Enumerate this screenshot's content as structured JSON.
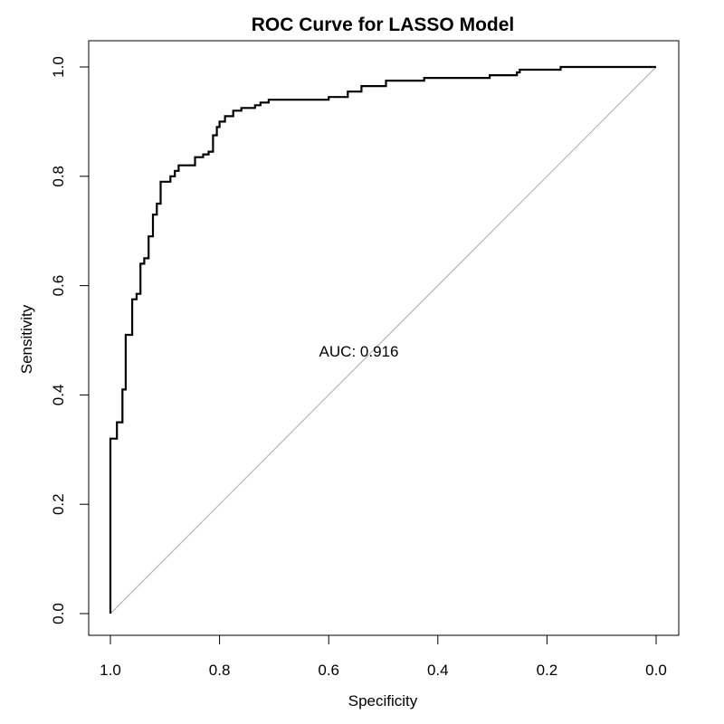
{
  "chart_data": {
    "type": "line",
    "title": "ROC Curve for LASSO Model",
    "xlabel": "Specificity",
    "ylabel": "Sensitivity",
    "xlim": [
      1.0,
      0.0
    ],
    "ylim": [
      0.0,
      1.0
    ],
    "x_reversed": true,
    "x_ticks": [
      "1.0",
      "0.8",
      "0.6",
      "0.4",
      "0.2",
      "0.0"
    ],
    "y_ticks": [
      "0.0",
      "0.2",
      "0.4",
      "0.6",
      "0.8",
      "1.0"
    ],
    "grid": false,
    "legend": "none",
    "annotation": {
      "text": "AUC: 0.916",
      "x": 0.5,
      "y": 0.48
    },
    "reference_line": {
      "from": [
        1.0,
        0.0
      ],
      "to": [
        0.0,
        1.0
      ],
      "color": "#aaaaaa"
    },
    "series": [
      {
        "color": "#000000",
        "points": [
          [
            1.0,
            0.0
          ],
          [
            1.0,
            0.32
          ],
          [
            0.988,
            0.32
          ],
          [
            0.988,
            0.35
          ],
          [
            0.978,
            0.35
          ],
          [
            0.978,
            0.41
          ],
          [
            0.972,
            0.41
          ],
          [
            0.972,
            0.51
          ],
          [
            0.96,
            0.51
          ],
          [
            0.96,
            0.575
          ],
          [
            0.952,
            0.575
          ],
          [
            0.952,
            0.585
          ],
          [
            0.945,
            0.585
          ],
          [
            0.945,
            0.64
          ],
          [
            0.938,
            0.64
          ],
          [
            0.938,
            0.65
          ],
          [
            0.93,
            0.65
          ],
          [
            0.93,
            0.69
          ],
          [
            0.922,
            0.69
          ],
          [
            0.922,
            0.73
          ],
          [
            0.915,
            0.73
          ],
          [
            0.915,
            0.75
          ],
          [
            0.908,
            0.75
          ],
          [
            0.908,
            0.79
          ],
          [
            0.89,
            0.79
          ],
          [
            0.89,
            0.8
          ],
          [
            0.882,
            0.8
          ],
          [
            0.882,
            0.81
          ],
          [
            0.875,
            0.81
          ],
          [
            0.875,
            0.82
          ],
          [
            0.86,
            0.82
          ],
          [
            0.86,
            0.82
          ],
          [
            0.845,
            0.82
          ],
          [
            0.845,
            0.835
          ],
          [
            0.83,
            0.835
          ],
          [
            0.83,
            0.84
          ],
          [
            0.82,
            0.84
          ],
          [
            0.82,
            0.845
          ],
          [
            0.812,
            0.845
          ],
          [
            0.812,
            0.875
          ],
          [
            0.805,
            0.875
          ],
          [
            0.805,
            0.89
          ],
          [
            0.8,
            0.89
          ],
          [
            0.8,
            0.9
          ],
          [
            0.79,
            0.9
          ],
          [
            0.79,
            0.91
          ],
          [
            0.775,
            0.91
          ],
          [
            0.775,
            0.92
          ],
          [
            0.76,
            0.92
          ],
          [
            0.76,
            0.925
          ],
          [
            0.735,
            0.925
          ],
          [
            0.735,
            0.93
          ],
          [
            0.725,
            0.93
          ],
          [
            0.725,
            0.935
          ],
          [
            0.71,
            0.935
          ],
          [
            0.71,
            0.94
          ],
          [
            0.6,
            0.94
          ],
          [
            0.6,
            0.945
          ],
          [
            0.565,
            0.945
          ],
          [
            0.565,
            0.955
          ],
          [
            0.54,
            0.955
          ],
          [
            0.54,
            0.965
          ],
          [
            0.495,
            0.965
          ],
          [
            0.495,
            0.975
          ],
          [
            0.425,
            0.975
          ],
          [
            0.425,
            0.98
          ],
          [
            0.305,
            0.98
          ],
          [
            0.305,
            0.985
          ],
          [
            0.255,
            0.985
          ],
          [
            0.255,
            0.99
          ],
          [
            0.25,
            0.99
          ],
          [
            0.25,
            0.995
          ],
          [
            0.175,
            0.995
          ],
          [
            0.175,
            1.0
          ],
          [
            0.0,
            1.0
          ]
        ]
      }
    ]
  }
}
